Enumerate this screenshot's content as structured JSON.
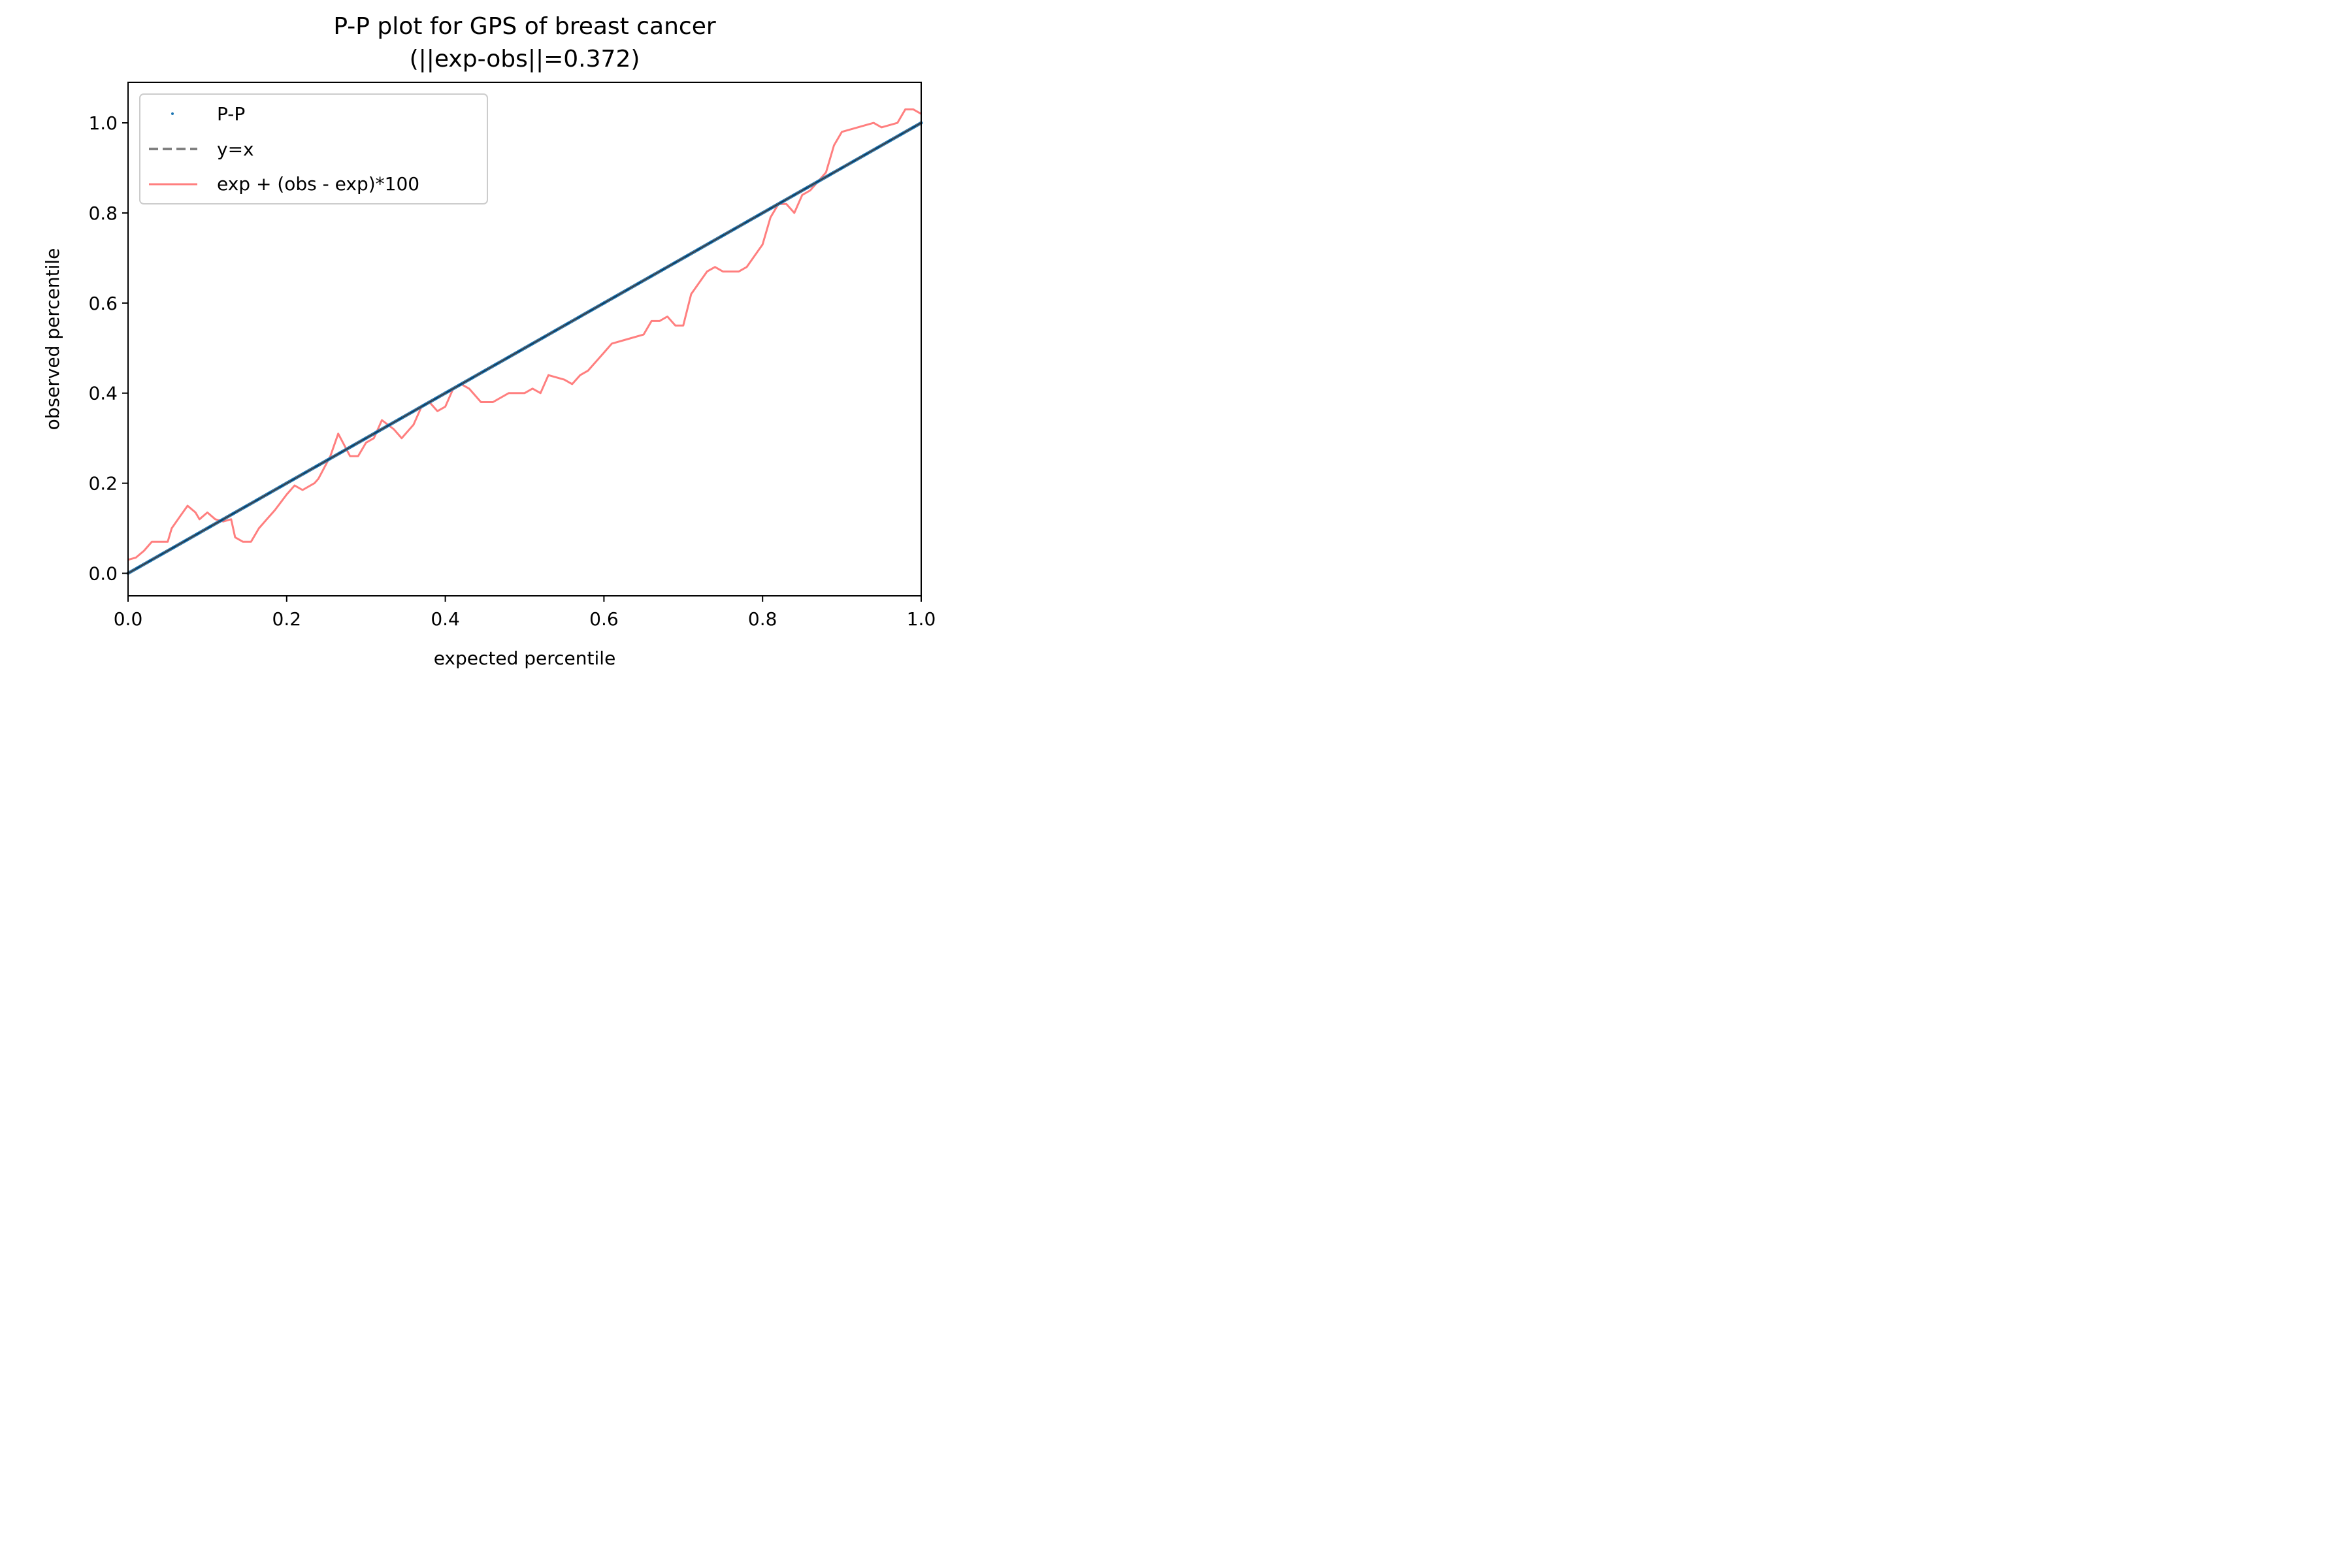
{
  "chart_data": {
    "type": "line",
    "title": "P-P plot for GPS of breast cancer",
    "subtitle": "(||exp-obs||=0.372)",
    "xlabel": "expected percentile",
    "ylabel": "observed percentile",
    "xlim": [
      0.0,
      1.0
    ],
    "ylim": [
      -0.05,
      1.09
    ],
    "x_ticks": [
      "0.0",
      "0.2",
      "0.4",
      "0.6",
      "0.8",
      "1.0"
    ],
    "y_ticks": [
      "0.0",
      "0.2",
      "0.4",
      "0.6",
      "0.8",
      "1.0"
    ],
    "grid": false,
    "legend_position": "top-left",
    "colors": {
      "pp": "#1f77b4",
      "diag": "#808080",
      "amp": "#ff7f7f"
    },
    "series": [
      {
        "name": "P-P",
        "style": "dots",
        "points": [
          [
            0.0,
            0.0
          ],
          [
            0.1,
            0.1
          ],
          [
            0.2,
            0.2
          ],
          [
            0.3,
            0.3
          ],
          [
            0.4,
            0.4
          ],
          [
            0.5,
            0.5
          ],
          [
            0.6,
            0.6
          ],
          [
            0.7,
            0.7
          ],
          [
            0.8,
            0.8
          ],
          [
            0.9,
            0.9
          ],
          [
            1.0,
            1.0
          ]
        ]
      },
      {
        "name": "y=x",
        "style": "dashed",
        "points": [
          [
            0.0,
            0.0
          ],
          [
            1.0,
            1.0
          ]
        ]
      },
      {
        "name": "exp + (obs - exp)*100",
        "style": "line",
        "points": [
          [
            0.0,
            0.03
          ],
          [
            0.01,
            0.035
          ],
          [
            0.02,
            0.05
          ],
          [
            0.03,
            0.07
          ],
          [
            0.04,
            0.07
          ],
          [
            0.05,
            0.07
          ],
          [
            0.055,
            0.1
          ],
          [
            0.065,
            0.125
          ],
          [
            0.075,
            0.15
          ],
          [
            0.085,
            0.135
          ],
          [
            0.09,
            0.12
          ],
          [
            0.1,
            0.135
          ],
          [
            0.11,
            0.12
          ],
          [
            0.12,
            0.115
          ],
          [
            0.13,
            0.12
          ],
          [
            0.135,
            0.08
          ],
          [
            0.145,
            0.07
          ],
          [
            0.155,
            0.07
          ],
          [
            0.165,
            0.1
          ],
          [
            0.175,
            0.12
          ],
          [
            0.185,
            0.14
          ],
          [
            0.2,
            0.175
          ],
          [
            0.21,
            0.195
          ],
          [
            0.22,
            0.185
          ],
          [
            0.235,
            0.2
          ],
          [
            0.24,
            0.21
          ],
          [
            0.255,
            0.26
          ],
          [
            0.265,
            0.31
          ],
          [
            0.28,
            0.26
          ],
          [
            0.29,
            0.26
          ],
          [
            0.3,
            0.29
          ],
          [
            0.31,
            0.3
          ],
          [
            0.32,
            0.34
          ],
          [
            0.335,
            0.32
          ],
          [
            0.345,
            0.3
          ],
          [
            0.36,
            0.33
          ],
          [
            0.37,
            0.37
          ],
          [
            0.38,
            0.38
          ],
          [
            0.39,
            0.36
          ],
          [
            0.4,
            0.37
          ],
          [
            0.41,
            0.41
          ],
          [
            0.42,
            0.42
          ],
          [
            0.43,
            0.41
          ],
          [
            0.445,
            0.38
          ],
          [
            0.46,
            0.38
          ],
          [
            0.48,
            0.4
          ],
          [
            0.5,
            0.4
          ],
          [
            0.51,
            0.41
          ],
          [
            0.52,
            0.4
          ],
          [
            0.53,
            0.44
          ],
          [
            0.55,
            0.43
          ],
          [
            0.56,
            0.42
          ],
          [
            0.57,
            0.44
          ],
          [
            0.58,
            0.45
          ],
          [
            0.6,
            0.49
          ],
          [
            0.61,
            0.51
          ],
          [
            0.63,
            0.52
          ],
          [
            0.65,
            0.53
          ],
          [
            0.66,
            0.56
          ],
          [
            0.67,
            0.56
          ],
          [
            0.68,
            0.57
          ],
          [
            0.69,
            0.55
          ],
          [
            0.7,
            0.55
          ],
          [
            0.71,
            0.62
          ],
          [
            0.73,
            0.67
          ],
          [
            0.74,
            0.68
          ],
          [
            0.75,
            0.67
          ],
          [
            0.77,
            0.67
          ],
          [
            0.78,
            0.68
          ],
          [
            0.8,
            0.73
          ],
          [
            0.81,
            0.79
          ],
          [
            0.82,
            0.82
          ],
          [
            0.83,
            0.82
          ],
          [
            0.84,
            0.8
          ],
          [
            0.85,
            0.84
          ],
          [
            0.86,
            0.85
          ],
          [
            0.87,
            0.87
          ],
          [
            0.88,
            0.89
          ],
          [
            0.89,
            0.95
          ],
          [
            0.9,
            0.98
          ],
          [
            0.92,
            0.99
          ],
          [
            0.94,
            1.0
          ],
          [
            0.95,
            0.99
          ],
          [
            0.97,
            1.0
          ],
          [
            0.98,
            1.03
          ],
          [
            0.99,
            1.03
          ],
          [
            1.0,
            1.02
          ]
        ]
      }
    ]
  }
}
